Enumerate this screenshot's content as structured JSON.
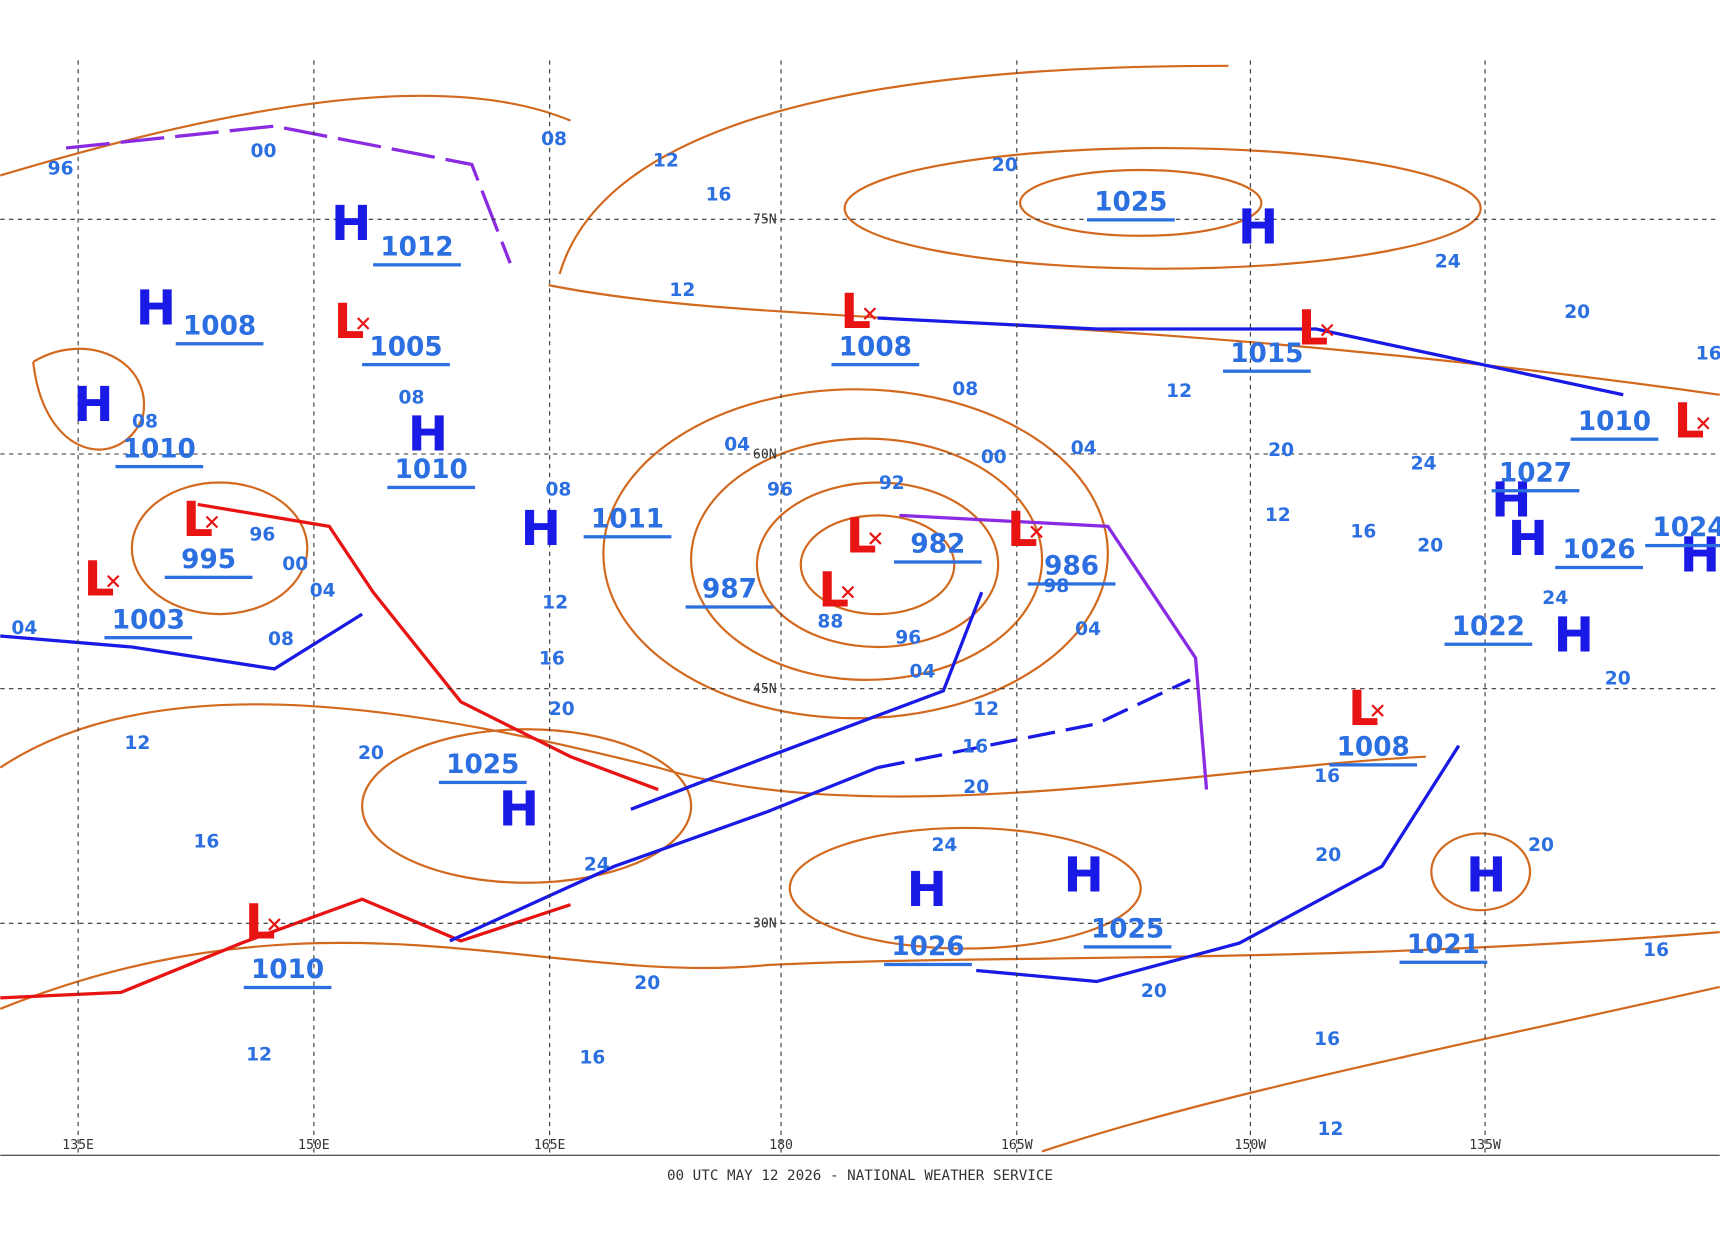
{
  "footer": "00 UTC MAY 12 2026 - NATIONAL WEATHER SERVICE",
  "latitude_labels": [
    "75N",
    "60N",
    "45N",
    "30N"
  ],
  "longitude_labels": [
    "135E",
    "150E",
    "165E",
    "180",
    "165W",
    "150W",
    "135W"
  ],
  "pressure_centers": [
    {
      "symbol": "H",
      "value": "1012"
    },
    {
      "symbol": "H",
      "value": "1008"
    },
    {
      "symbol": "L",
      "value": "1005"
    },
    {
      "symbol": "H",
      "value": "1010"
    },
    {
      "symbol": "H",
      "value": "1010"
    },
    {
      "symbol": "L",
      "value": "995"
    },
    {
      "symbol": "L",
      "value": "1003"
    },
    {
      "symbol": "H",
      "value": "1011"
    },
    {
      "symbol": "L",
      "value": "982"
    },
    {
      "symbol": "L",
      "value": "987"
    },
    {
      "symbol": "L",
      "value": "986"
    },
    {
      "symbol": "L",
      "value": "1008"
    },
    {
      "symbol": "L",
      "value": "1015"
    },
    {
      "symbol": "H",
      "value": "1025"
    },
    {
      "symbol": "H",
      "value": "1027"
    },
    {
      "symbol": "H",
      "value": "1026"
    },
    {
      "symbol": "H",
      "value": "1022"
    },
    {
      "symbol": "H",
      "value": "1024"
    },
    {
      "symbol": "L",
      "value": "1010"
    },
    {
      "symbol": "L",
      "value": "1008"
    },
    {
      "symbol": "H",
      "value": "1025"
    },
    {
      "symbol": "H",
      "value": "1026"
    },
    {
      "symbol": "H",
      "value": "1025"
    },
    {
      "symbol": "H",
      "value": "1021"
    },
    {
      "symbol": "L",
      "value": "1010"
    }
  ],
  "isobar_labels": [
    "08",
    "12",
    "16",
    "20",
    "24",
    "12",
    "96",
    "00",
    "08",
    "08",
    "04",
    "96",
    "92",
    "00",
    "08",
    "04",
    "12",
    "20",
    "24",
    "12",
    "16",
    "20",
    "24",
    "20",
    "16",
    "08",
    "96",
    "00",
    "04",
    "04",
    "08",
    "12",
    "16",
    "96",
    "04",
    "04",
    "12",
    "16",
    "20",
    "20",
    "20",
    "12",
    "16",
    "24",
    "24",
    "20",
    "16",
    "20",
    "20",
    "16",
    "20",
    "20",
    "16",
    "12",
    "16",
    "12",
    "98",
    "88"
  ]
}
